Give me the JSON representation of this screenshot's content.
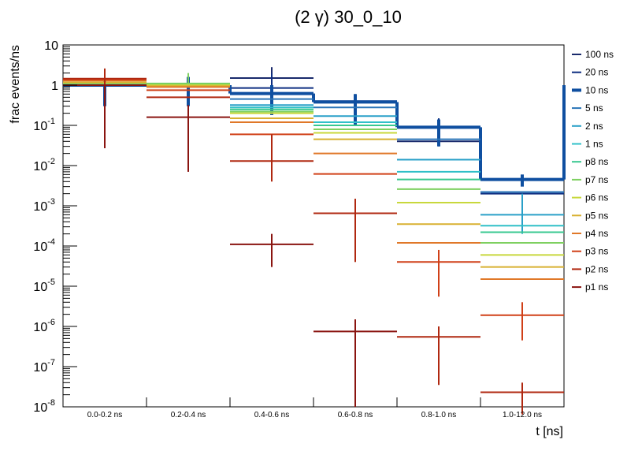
{
  "chart_data": {
    "type": "line",
    "title": "(2 γ) 30_0_10",
    "xlabel": "t [ns]",
    "ylabel": "frac events/ns",
    "yscale": "log",
    "ylim": [
      1e-08,
      10
    ],
    "categories": [
      "0.0-0.2 ns",
      "0.2-0.4 ns",
      "0.4-0.6 ns",
      "0.6-0.8 ns",
      "0.8-1.0 ns",
      "1.0-12.0 ns"
    ],
    "ytick_labels": [
      {
        "base": "10",
        "exp": "-8",
        "v": 1e-08
      },
      {
        "base": "10",
        "exp": "-7",
        "v": 1e-07
      },
      {
        "base": "10",
        "exp": "-6",
        "v": 1e-06
      },
      {
        "base": "10",
        "exp": "-5",
        "v": 1e-05
      },
      {
        "base": "10",
        "exp": "-4",
        "v": 0.0001
      },
      {
        "base": "10",
        "exp": "-3",
        "v": 0.001
      },
      {
        "base": "10",
        "exp": "-2",
        "v": 0.01
      },
      {
        "base": "10",
        "exp": "-1",
        "v": 0.1
      },
      {
        "base": "1",
        "exp": "",
        "v": 1
      },
      {
        "base": "10",
        "exp": "",
        "v": 10
      }
    ],
    "legend_position": "right",
    "series": [
      {
        "name": "100 ns",
        "color": "#1a2a6c",
        "width": 2,
        "values": [
          1.0,
          1.0,
          1.5,
          null,
          0.04,
          0.0022
        ],
        "errors": [
          [
            0.3,
            1.6
          ],
          null,
          [
            0.8,
            2.8
          ],
          null,
          null,
          null
        ]
      },
      {
        "name": "20 ns",
        "color": "#0d2d80",
        "width": 2,
        "values": [
          1.0,
          1.0,
          0.85,
          0.4,
          0.09,
          0.002
        ],
        "errors": [
          null,
          null,
          [
            0.2,
            2.0
          ],
          [
            0.12,
            0.6
          ],
          [
            0.03,
            0.15
          ],
          null
        ]
      },
      {
        "name": "10 ns",
        "color": "#0f4fa0",
        "width": 4,
        "values": [
          1.0,
          1.0,
          0.62,
          0.38,
          0.09,
          0.0045
        ],
        "errors": [
          [
            0.3,
            1.5
          ],
          [
            0.3,
            1.6
          ],
          [
            0.18,
            1.0
          ],
          [
            0.1,
            0.6
          ],
          [
            0.03,
            0.14
          ],
          [
            0.003,
            0.006
          ]
        ]
      },
      {
        "name": "5 ns",
        "color": "#2a75b8",
        "width": 2,
        "values": [
          1.02,
          1.0,
          0.45,
          0.28,
          0.045,
          0.0022
        ],
        "errors": null
      },
      {
        "name": "2 ns",
        "color": "#2aa0c8",
        "width": 2,
        "values": [
          1.05,
          1.0,
          0.32,
          0.17,
          0.014,
          0.0006
        ],
        "errors": [
          null,
          null,
          null,
          null,
          null,
          [
            0.0002,
            0.002
          ]
        ]
      },
      {
        "name": "1 ns",
        "color": "#30c0c8",
        "width": 2,
        "values": [
          1.08,
          1.05,
          0.28,
          0.12,
          0.007,
          0.00032
        ],
        "errors": null
      },
      {
        "name": "p8 ns",
        "color": "#38c890",
        "width": 2,
        "values": [
          1.1,
          1.08,
          0.25,
          0.1,
          0.0045,
          0.00022
        ],
        "errors": null
      },
      {
        "name": "p7 ns",
        "color": "#7ed060",
        "width": 2,
        "values": [
          1.12,
          1.1,
          0.22,
          0.08,
          0.0026,
          0.00012
        ],
        "errors": [
          null,
          [
            0.9,
            2.0
          ],
          null,
          null,
          null,
          null
        ]
      },
      {
        "name": "p6 ns",
        "color": "#c8d83c",
        "width": 2,
        "values": [
          1.15,
          1.0,
          0.2,
          0.065,
          0.0012,
          6e-05
        ],
        "errors": null
      },
      {
        "name": "p5 ns",
        "color": "#d8b030",
        "width": 2,
        "values": [
          1.18,
          0.95,
          0.15,
          0.045,
          0.00035,
          3e-05
        ],
        "errors": null
      },
      {
        "name": "p4 ns",
        "color": "#e07828",
        "width": 2,
        "values": [
          1.3,
          0.9,
          0.12,
          0.02,
          0.00012,
          1.5e-05
        ],
        "errors": null
      },
      {
        "name": "p3 ns",
        "color": "#d04018",
        "width": 2,
        "values": [
          1.38,
          0.75,
          0.06,
          0.0062,
          4e-05,
          1.9e-06
        ],
        "errors": [
          null,
          null,
          null,
          null,
          [
            5.5e-06,
            8e-05
          ],
          [
            4.5e-07,
            4e-06
          ]
        ]
      },
      {
        "name": "p2 ns",
        "color": "#b02810",
        "width": 2,
        "values": [
          1.45,
          0.5,
          0.013,
          0.00065,
          5.5e-07,
          2.3e-08
        ],
        "errors": [
          [
            0.4,
            2.6
          ],
          null,
          [
            0.004,
            0.06
          ],
          [
            4e-05,
            0.0015
          ],
          [
            3.5e-08,
            1e-06
          ],
          [
            6.5e-09,
            4e-08
          ]
        ]
      },
      {
        "name": "p1 ns",
        "color": "#8a1410",
        "width": 2,
        "values": [
          1.0,
          0.16,
          0.00011,
          7.5e-07,
          null,
          null
        ],
        "errors": [
          [
            0.027,
            1.0
          ],
          [
            0.007,
            0.32
          ],
          [
            3e-05,
            0.0002
          ],
          [
            1e-08,
            1.5e-06
          ],
          null,
          null
        ]
      }
    ]
  }
}
